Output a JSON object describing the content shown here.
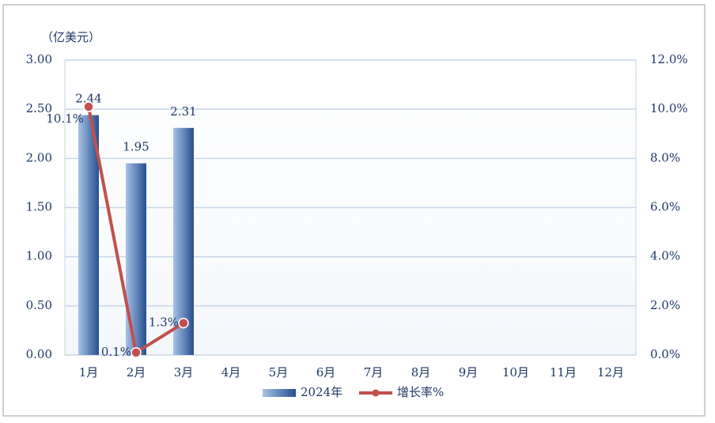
{
  "chart_data": {
    "type": "bar",
    "y_label": "（亿美元）",
    "categories": [
      "1月",
      "2月",
      "3月",
      "4月",
      "5月",
      "6月",
      "7月",
      "8月",
      "9月",
      "10月",
      "11月",
      "12月"
    ],
    "series": [
      {
        "name": "2024年",
        "type": "bar",
        "color": "#2f5a9a",
        "values": [
          2.44,
          1.95,
          2.31,
          null,
          null,
          null,
          null,
          null,
          null,
          null,
          null,
          null
        ]
      },
      {
        "name": "增长率%",
        "type": "line",
        "axis": "y2",
        "color": "#c0504d",
        "values": [
          10.1,
          0.1,
          1.3,
          null,
          null,
          null,
          null,
          null,
          null,
          null,
          null,
          null
        ],
        "value_labels": [
          "10.1%",
          "0.1%",
          "1.3%",
          null,
          null,
          null,
          null,
          null,
          null,
          null,
          null,
          null
        ]
      }
    ],
    "ylim": [
      0,
      3
    ],
    "yticks": [
      {
        "value": 0,
        "label": "0.00"
      },
      {
        "value": 0.5,
        "label": "0.50"
      },
      {
        "value": 1,
        "label": "1.00"
      },
      {
        "value": 1.5,
        "label": "1.50"
      },
      {
        "value": 2,
        "label": "2.00"
      },
      {
        "value": 2.5,
        "label": "2.50"
      },
      {
        "value": 3,
        "label": "3.00"
      }
    ],
    "y2lim": [
      0,
      12
    ],
    "y2ticks": [
      {
        "value": 0,
        "label": "0.0%"
      },
      {
        "value": 2,
        "label": "2.0%"
      },
      {
        "value": 4,
        "label": "4.0%"
      },
      {
        "value": 6,
        "label": "6.0%"
      },
      {
        "value": 8,
        "label": "8.0%"
      },
      {
        "value": 10,
        "label": "10.0%"
      },
      {
        "value": 12,
        "label": "12.0%"
      }
    ],
    "grid": true,
    "legend": "bottom"
  }
}
